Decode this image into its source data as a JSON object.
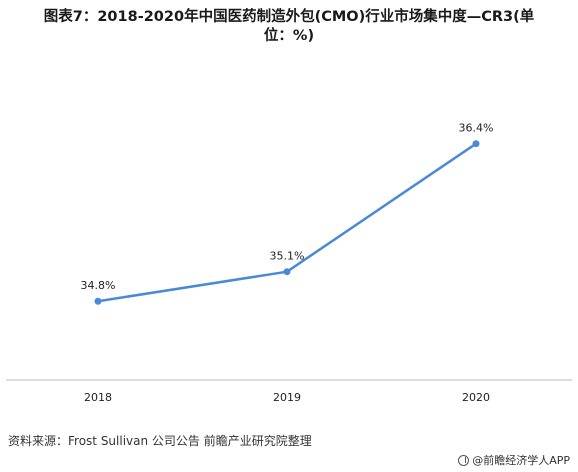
{
  "title": {
    "line1": "图表7：2018-2020年中国医药制造外包(CMO)行业市场集中度—CR3(单",
    "line2": "位：%)"
  },
  "source": "资料来源：Frost Sullivan 公司公告 前瞻产业研究院整理",
  "brand": "@前瞻经济学人APP",
  "colors": {
    "line": "#4a88d8",
    "axis": "#bbbbbb"
  },
  "chart_data": {
    "type": "line",
    "categories": [
      "2018",
      "2019",
      "2020"
    ],
    "series": [
      {
        "values": [
          34.8,
          35.1,
          36.4
        ],
        "labels": [
          "34.8%",
          "35.1%",
          "36.4%"
        ]
      }
    ],
    "title": "2018-2020年中国医药制造外包(CMO)行业市场集中度—CR3(单位：%)",
    "xlabel": "",
    "ylabel": "",
    "ylim": [
      34.0,
      36.6
    ],
    "grid": false,
    "legend": "none"
  }
}
